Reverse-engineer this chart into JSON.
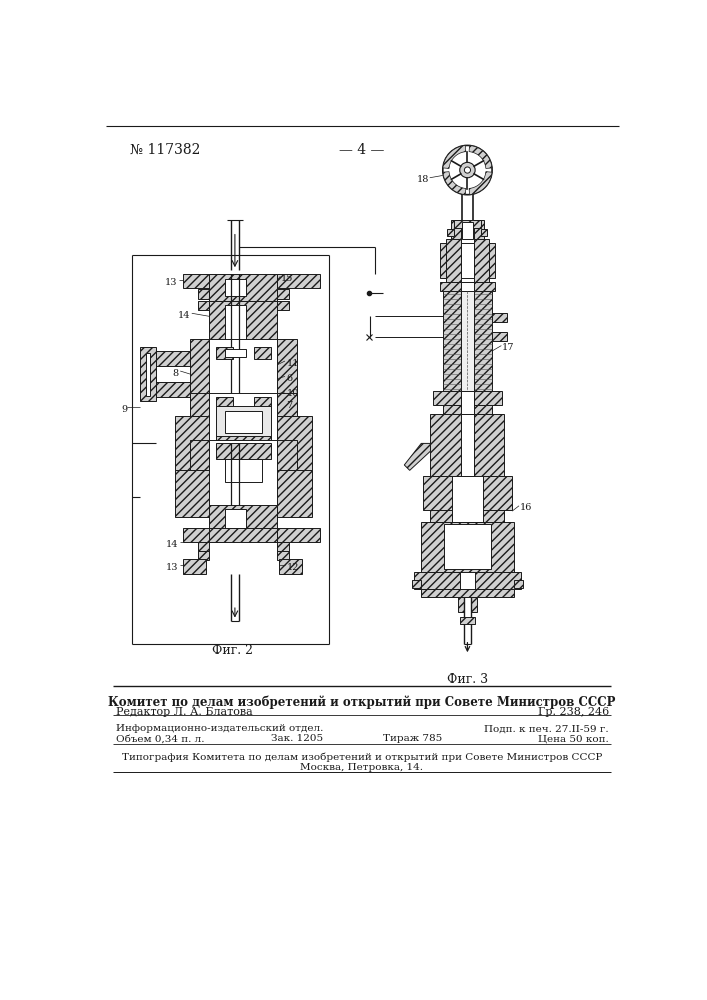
{
  "page_number": "№ 117382",
  "page_label": "— 4 —",
  "fig2_label": "Фиг. 2",
  "fig3_label": "Фиг. 3",
  "footer_title": "Комитет по делам изобретений и открытий при Совете Министров СССР",
  "footer_editor": "Редактор Л. А. Блатова",
  "footer_gr": "Гр. 238, 246",
  "footer_info": "Информационно-издательский отдел.",
  "footer_podp": "Подп. к печ. 27.II-59 г.",
  "footer_obem": "Объем 0,34 п. л.",
  "footer_zak": "Зак. 1205",
  "footer_tirazh": "Тираж 785",
  "footer_cena": "Цена 50 коп.",
  "footer_tipogr": "Типография Комитета по делам изобретений и открытий при Совете Министров СССР",
  "footer_addr": "Москва, Петровка, 14.",
  "bg_color": "#ffffff",
  "line_color": "#1a1a1a",
  "hatch_color": "#333333",
  "hatch_fc": "#d0d0d0"
}
